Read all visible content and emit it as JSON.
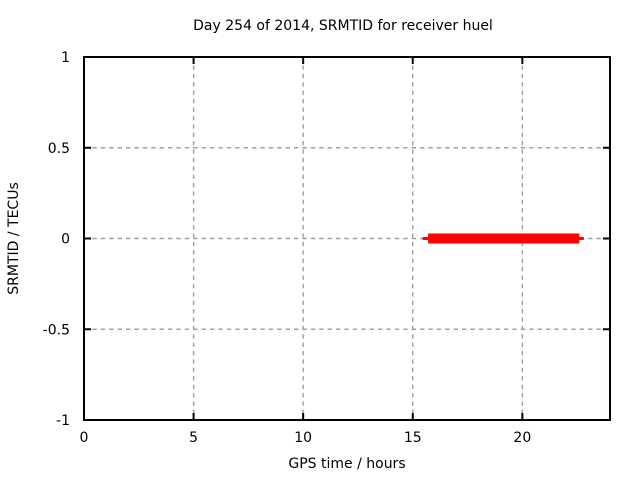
{
  "chart_data": {
    "type": "line",
    "title": "Day 254 of 2014, SRMTID for receiver huel",
    "xlabel": "GPS time / hours",
    "ylabel": "SRMTID / TECUs",
    "xlim": [
      0,
      24
    ],
    "ylim": [
      -1,
      1
    ],
    "xticks": {
      "values": [
        0,
        5,
        10,
        15,
        20
      ],
      "labels": [
        "0",
        "5",
        "10",
        "15",
        "20"
      ]
    },
    "yticks": {
      "values": [
        1,
        0.5,
        0,
        -0.5,
        -1
      ],
      "labels": [
        "1",
        "0.5",
        "0",
        "-0.5",
        "-1"
      ]
    },
    "grid": true,
    "legend": "none",
    "colors": {
      "background": "#ffffff",
      "axis": "#000000",
      "grid": "#a0a0a0",
      "series": "#ff0000",
      "text": "#000000"
    },
    "series": [
      {
        "name": "SRMTID",
        "shape": "horizontal-segment",
        "y": 0,
        "x_start": 15.45,
        "x_end": 22.8,
        "core_x_start": 15.7,
        "core_x_end": 22.6,
        "core_thickness_px": 10,
        "line_thickness_px": 3,
        "color": "#ff0000"
      }
    ]
  }
}
